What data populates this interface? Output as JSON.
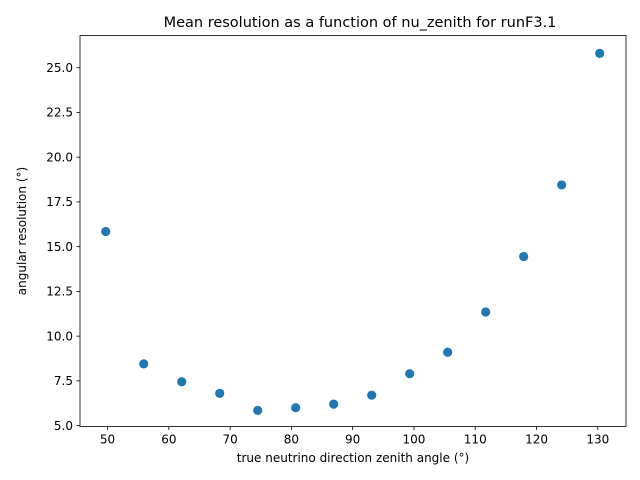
{
  "chart_data": {
    "type": "scatter",
    "title": "Mean resolution as a function of nu_zenith for runF3.1",
    "xlabel": "true neutrino direction zenith angle (°)",
    "ylabel": "angular resolution (°)",
    "xlim": [
      45.5,
      134.6
    ],
    "ylim": [
      4.95,
      26.8
    ],
    "xticks": [
      50,
      60,
      70,
      80,
      90,
      100,
      110,
      120,
      130
    ],
    "xtick_labels": [
      "50",
      "60",
      "70",
      "80",
      "90",
      "100",
      "110",
      "120",
      "130"
    ],
    "yticks": [
      5.0,
      7.5,
      10.0,
      12.5,
      15.0,
      17.5,
      20.0,
      22.5,
      25.0
    ],
    "ytick_labels": [
      "5.0",
      "7.5",
      "10.0",
      "12.5",
      "15.0",
      "17.5",
      "20.0",
      "22.5",
      "25.0"
    ],
    "grid": false,
    "marker_color": "#1f77b4",
    "x": [
      49.7,
      55.9,
      62.1,
      68.3,
      74.5,
      80.7,
      86.9,
      93.1,
      99.3,
      105.5,
      111.7,
      117.9,
      124.1,
      130.3
    ],
    "y": [
      15.85,
      8.45,
      7.45,
      6.8,
      5.85,
      6.0,
      6.2,
      6.7,
      7.9,
      9.1,
      11.35,
      14.45,
      18.45,
      25.8
    ]
  }
}
